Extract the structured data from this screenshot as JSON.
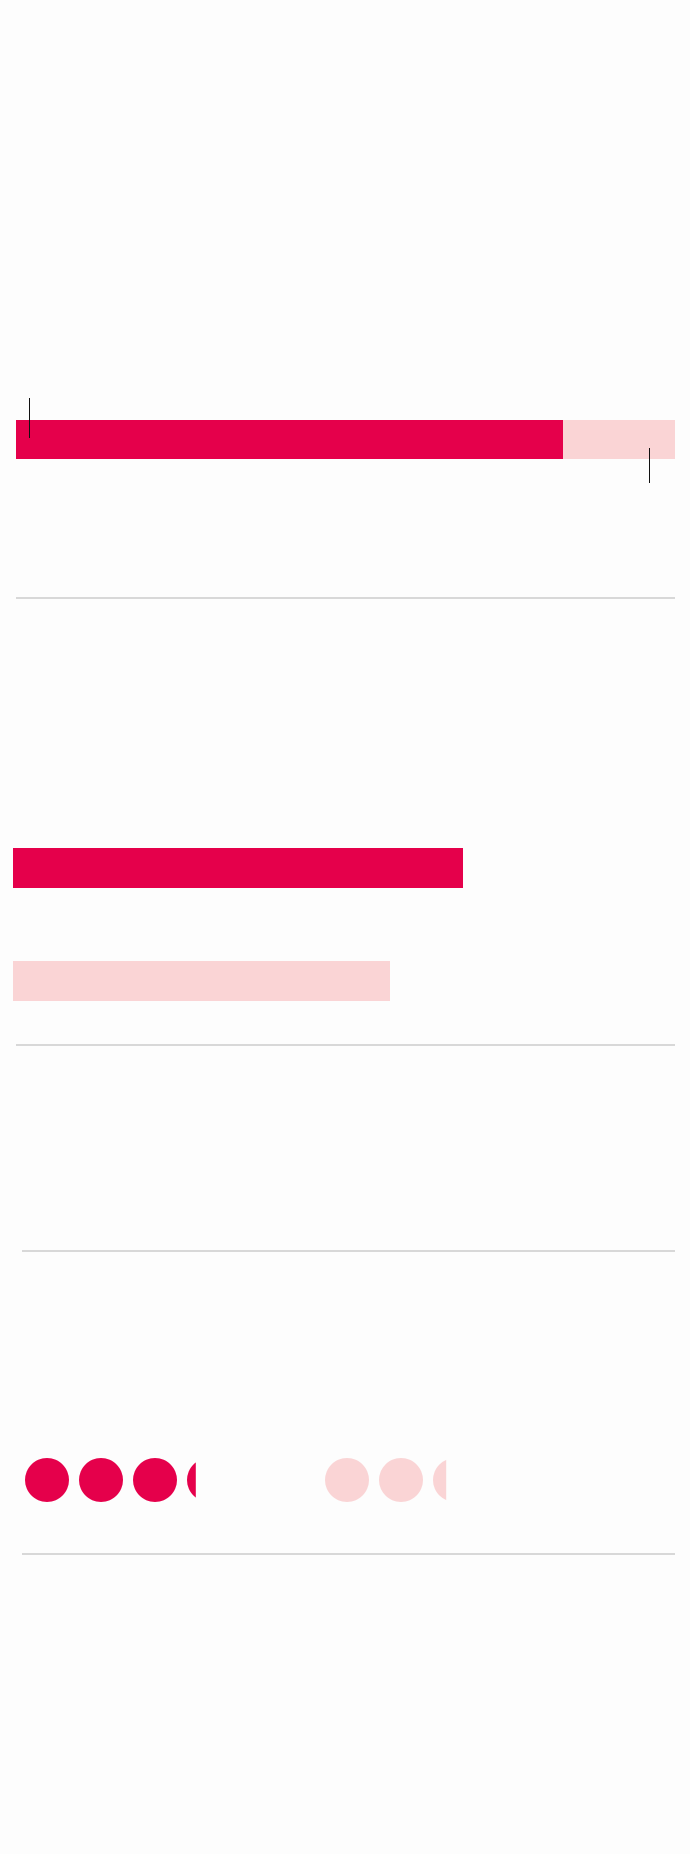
{
  "colors": {
    "primary": "#e5004b",
    "secondary": "#fad4d5",
    "divider": "#d8d8d8",
    "marker": "#111111",
    "background": "#fdfdfd"
  },
  "chart_data": [
    {
      "type": "bar",
      "orientation": "horizontal",
      "stacked": true,
      "title": "",
      "series": [
        {
          "values": [
            83
          ]
        },
        {
          "values": [
            17
          ]
        }
      ],
      "xlim": [
        0,
        100
      ],
      "markers": [
        2,
        96
      ],
      "grid": false,
      "legend": "none"
    },
    {
      "type": "bar",
      "orientation": "horizontal",
      "title": "",
      "categories": [
        "",
        ""
      ],
      "values": [
        68,
        57
      ],
      "xlim": [
        0,
        100
      ],
      "grid": false,
      "legend": "none"
    },
    {
      "type": "pictograph",
      "title": "",
      "series": [
        {
          "values": [
            3.2
          ]
        },
        {
          "values": [
            2.3
          ]
        }
      ],
      "grid": false,
      "legend": "none"
    }
  ]
}
